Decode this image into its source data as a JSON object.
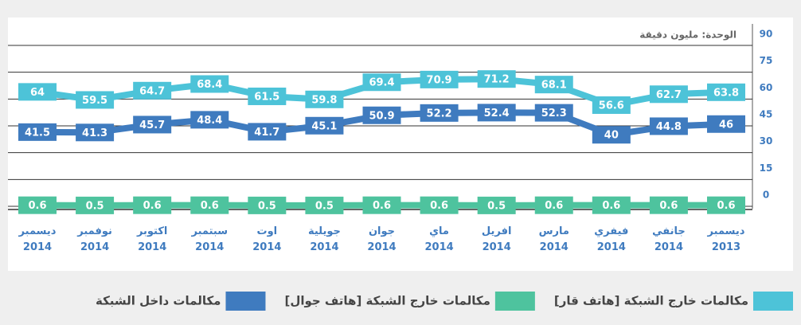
{
  "chart_data": {
    "type": "line",
    "unit_label": "الوحدة: مليون دقيقة",
    "categories": [
      "ديسمبر 2013",
      "جانفي 2014",
      "فيفري 2014",
      "مارس 2014",
      "افريل 2014",
      "ماي 2014",
      "جوان 2014",
      "جويلية 2014",
      "اوت 2014",
      "سبتمبر 2014",
      "اكتوبر 2014",
      "نوفمبر 2014",
      "ديسمبر 2014"
    ],
    "x_reversed": true,
    "series": [
      {
        "name": "مكالمات خارج الشبكة [هاتف قار]",
        "color": "#4dc3d8",
        "values": [
          63.8,
          62.7,
          56.6,
          68.1,
          71.2,
          70.9,
          69.4,
          59.8,
          61.5,
          68.4,
          64.7,
          59.5,
          64
        ]
      },
      {
        "name": "مكالمات خارج الشبكة [هاتف جوال]",
        "color": "#4ec39e",
        "values": [
          0.6,
          0.6,
          0.6,
          0.6,
          0.5,
          0.6,
          0.6,
          0.5,
          0.5,
          0.6,
          0.6,
          0.5,
          0.6
        ]
      },
      {
        "name": "مكالمات داخل الشبكة",
        "color": "#3f7bbf",
        "values": [
          46,
          44.8,
          40,
          52.3,
          52.4,
          52.2,
          50.9,
          45.1,
          41.7,
          48.4,
          45.7,
          41.3,
          41.5
        ]
      }
    ],
    "ylim": [
      0,
      90
    ],
    "yticks": [
      0,
      15,
      30,
      45,
      60,
      75,
      90
    ],
    "y_axis_side": "right",
    "grid": true
  }
}
